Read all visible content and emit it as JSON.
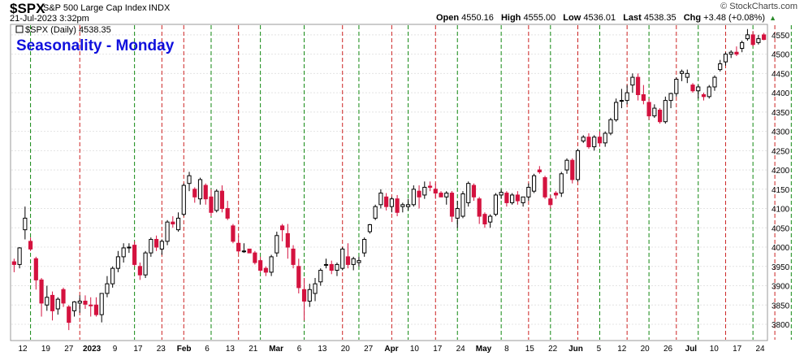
{
  "header": {
    "symbol": "$SPX",
    "name": "S&P 500 Large Cap Index",
    "exchange": "INDX",
    "datetime": "21-Jul-2023 3:32pm",
    "brand": "© StockCharts.com",
    "open_label": "Open",
    "open": "4550.16",
    "high_label": "High",
    "high": "4555.00",
    "low_label": "Low",
    "low": "4536.01",
    "last_label": "Last",
    "last": "4538.35",
    "chg_label": "Chg",
    "chg": "+3.48 (+0.08%)",
    "up_arrow": "▲"
  },
  "colors": {
    "up": "#ffffff",
    "down": "#d4123f",
    "neutral": "#000000",
    "monday": "#118811",
    "friday": "#cc2222",
    "heading": "#1010dd"
  },
  "chart_data": {
    "type": "candlestick",
    "title": "Seasonality - Monday",
    "legend": "$SPX (Daily) 4538.35",
    "ylim": [
      3760,
      4575
    ],
    "yticks": [
      3800,
      3850,
      3900,
      3950,
      4000,
      4050,
      4100,
      4150,
      4200,
      4250,
      4300,
      4350,
      4400,
      4450,
      4500,
      4550
    ],
    "xlabels": [
      "12",
      "19",
      "27",
      "2023",
      "9",
      "17",
      "23",
      "Feb",
      "6",
      "13",
      "21",
      "Mar",
      "6",
      "13",
      "20",
      "27",
      "Apr",
      "10",
      "17",
      "24",
      "May",
      "8",
      "15",
      "22",
      "Jun",
      "5",
      "12",
      "20",
      "26",
      "Jul",
      "10",
      "17",
      "24"
    ],
    "green_lines_bar_index": [
      3,
      22,
      36,
      45,
      53,
      63,
      72,
      81,
      89,
      98,
      107,
      116,
      125,
      135,
      142,
      150
    ],
    "red_lines_bar_index": [
      12,
      27,
      31,
      41,
      60,
      69,
      77,
      94,
      103,
      112,
      121,
      130,
      139,
      146
    ],
    "bars": [
      [
        3962,
        3970,
        3935,
        3955
      ],
      [
        3955,
        4000,
        3945,
        3998
      ],
      [
        4045,
        4105,
        4020,
        4075
      ],
      [
        4015,
        4025,
        3990,
        3995
      ],
      [
        3970,
        3975,
        3890,
        3915
      ],
      [
        3915,
        3920,
        3820,
        3855
      ],
      [
        3850,
        3900,
        3835,
        3870
      ],
      [
        3875,
        3885,
        3810,
        3835
      ],
      [
        3840,
        3870,
        3825,
        3865
      ],
      [
        3890,
        3895,
        3845,
        3855
      ],
      [
        3845,
        3850,
        3785,
        3805
      ],
      [
        3835,
        3860,
        3820,
        3858
      ],
      [
        3855,
        3875,
        3830,
        3860
      ],
      [
        3860,
        3875,
        3840,
        3852
      ],
      [
        3850,
        3870,
        3820,
        3848
      ],
      [
        3850,
        3870,
        3820,
        3825
      ],
      [
        3825,
        3880,
        3805,
        3880
      ],
      [
        3880,
        3925,
        3870,
        3905
      ],
      [
        3905,
        3950,
        3895,
        3945
      ],
      [
        3945,
        3990,
        3935,
        3975
      ],
      [
        3975,
        4010,
        3960,
        3998
      ],
      [
        3998,
        4010,
        3985,
        4000
      ],
      [
        4005,
        4015,
        3950,
        3955
      ],
      [
        3950,
        3960,
        3915,
        3928
      ],
      [
        3928,
        3990,
        3920,
        3985
      ],
      [
        3985,
        4025,
        3975,
        4020
      ],
      [
        4020,
        4030,
        3990,
        4000
      ],
      [
        3995,
        4020,
        3980,
        4015
      ],
      [
        4015,
        4070,
        4005,
        4065
      ],
      [
        4065,
        4080,
        4050,
        4060
      ],
      [
        4045,
        4090,
        4040,
        4075
      ],
      [
        4085,
        4165,
        4080,
        4160
      ],
      [
        4165,
        4195,
        4145,
        4185
      ],
      [
        4150,
        4155,
        4115,
        4130
      ],
      [
        4125,
        4180,
        4110,
        4175
      ],
      [
        4160,
        4165,
        4110,
        4125
      ],
      [
        4130,
        4150,
        4080,
        4090
      ],
      [
        4095,
        4150,
        4090,
        4145
      ],
      [
        4145,
        4160,
        4090,
        4100
      ],
      [
        4100,
        4120,
        4070,
        4075
      ],
      [
        4055,
        4060,
        4010,
        4015
      ],
      [
        4010,
        4030,
        3985,
        3990
      ],
      [
        3990,
        4010,
        3985,
        3990
      ],
      [
        3995,
        3995,
        3985,
        3985
      ],
      [
        3985,
        3990,
        3955,
        3960
      ],
      [
        3965,
        3975,
        3935,
        3940
      ],
      [
        3945,
        3950,
        3925,
        3935
      ],
      [
        3935,
        3980,
        3925,
        3975
      ],
      [
        3985,
        4040,
        3975,
        4030
      ],
      [
        4055,
        4060,
        4015,
        4045
      ],
      [
        4035,
        4060,
        3970,
        4000
      ],
      [
        3995,
        4005,
        3945,
        3955
      ],
      [
        3950,
        3970,
        3880,
        3895
      ],
      [
        3890,
        3920,
        3810,
        3860
      ],
      [
        3860,
        3905,
        3845,
        3890
      ],
      [
        3880,
        3920,
        3860,
        3905
      ],
      [
        3910,
        3945,
        3900,
        3940
      ],
      [
        3955,
        3970,
        3945,
        3955
      ],
      [
        3955,
        3965,
        3930,
        3940
      ],
      [
        3940,
        3960,
        3925,
        3955
      ],
      [
        3945,
        4000,
        3940,
        3995
      ],
      [
        3975,
        4010,
        3945,
        3955
      ],
      [
        3955,
        3975,
        3940,
        3970
      ],
      [
        3960,
        3975,
        3950,
        3965
      ],
      [
        3985,
        4025,
        3975,
        4020
      ],
      [
        4040,
        4060,
        4035,
        4058
      ],
      [
        4075,
        4110,
        4070,
        4105
      ],
      [
        4110,
        4150,
        4100,
        4140
      ],
      [
        4130,
        4140,
        4095,
        4105
      ],
      [
        4105,
        4130,
        4090,
        4125
      ],
      [
        4125,
        4135,
        4080,
        4090
      ],
      [
        4105,
        4115,
        4090,
        4110
      ],
      [
        4105,
        4125,
        4095,
        4110
      ],
      [
        4110,
        4160,
        4105,
        4150
      ],
      [
        4145,
        4160,
        4100,
        4130
      ],
      [
        4135,
        4170,
        4125,
        4155
      ],
      [
        4158,
        4170,
        4145,
        4155
      ],
      [
        4150,
        4165,
        4125,
        4140
      ],
      [
        4140,
        4145,
        4130,
        4130
      ],
      [
        4130,
        4145,
        4110,
        4140
      ],
      [
        4140,
        4145,
        4065,
        4080
      ],
      [
        4075,
        4120,
        4050,
        4100
      ],
      [
        4080,
        4145,
        4075,
        4138
      ],
      [
        4115,
        4170,
        4105,
        4165
      ],
      [
        4160,
        4165,
        4120,
        4130
      ],
      [
        4125,
        4130,
        4060,
        4080
      ],
      [
        4085,
        4090,
        4050,
        4060
      ],
      [
        4065,
        4085,
        4050,
        4080
      ],
      [
        4085,
        4140,
        4080,
        4135
      ],
      [
        4135,
        4150,
        4125,
        4142
      ],
      [
        4140,
        4145,
        4105,
        4115
      ],
      [
        4115,
        4140,
        4110,
        4135
      ],
      [
        4135,
        4145,
        4110,
        4120
      ],
      [
        4115,
        4130,
        4105,
        4130
      ],
      [
        4130,
        4165,
        4120,
        4155
      ],
      [
        4145,
        4190,
        4140,
        4185
      ],
      [
        4200,
        4210,
        4190,
        4195
      ],
      [
        4180,
        4185,
        4125,
        4130
      ],
      [
        4125,
        4135,
        4100,
        4110
      ],
      [
        4140,
        4145,
        4125,
        4135
      ],
      [
        4140,
        4195,
        4130,
        4190
      ],
      [
        4200,
        4230,
        4190,
        4225
      ],
      [
        4225,
        4230,
        4165,
        4175
      ],
      [
        4175,
        4255,
        4170,
        4250
      ],
      [
        4275,
        4290,
        4270,
        4285
      ],
      [
        4285,
        4295,
        4255,
        4260
      ],
      [
        4260,
        4290,
        4250,
        4285
      ],
      [
        4285,
        4300,
        4260,
        4270
      ],
      [
        4270,
        4300,
        4260,
        4295
      ],
      [
        4295,
        4335,
        4290,
        4330
      ],
      [
        4330,
        4385,
        4325,
        4375
      ],
      [
        4380,
        4410,
        4360,
        4380
      ],
      [
        4380,
        4420,
        4370,
        4400
      ],
      [
        4420,
        4450,
        4400,
        4440
      ],
      [
        4440,
        4450,
        4380,
        4395
      ],
      [
        4395,
        4420,
        4370,
        4380
      ],
      [
        4375,
        4385,
        4330,
        4340
      ],
      [
        4340,
        4370,
        4335,
        4360
      ],
      [
        4355,
        4360,
        4320,
        4325
      ],
      [
        4325,
        4390,
        4320,
        4380
      ],
      [
        4380,
        4400,
        4360,
        4398
      ],
      [
        4398,
        4440,
        4390,
        4435
      ],
      [
        4450,
        4460,
        4430,
        4455
      ],
      [
        4440,
        4460,
        4425,
        4450
      ],
      [
        4420,
        4425,
        4400,
        4405
      ],
      [
        4405,
        4420,
        4385,
        4415
      ],
      [
        4395,
        4400,
        4380,
        4390
      ],
      [
        4390,
        4420,
        4385,
        4415
      ],
      [
        4415,
        4445,
        4405,
        4440
      ],
      [
        4460,
        4485,
        4455,
        4475
      ],
      [
        4480,
        4505,
        4470,
        4500
      ],
      [
        4500,
        4510,
        4490,
        4505
      ],
      [
        4505,
        4520,
        4495,
        4500
      ],
      [
        4515,
        4535,
        4505,
        4530
      ],
      [
        4540,
        4565,
        4535,
        4550
      ],
      [
        4550,
        4560,
        4520,
        4525
      ],
      [
        4530,
        4550,
        4525,
        4540
      ],
      [
        4550,
        4555,
        4536,
        4538
      ]
    ]
  }
}
